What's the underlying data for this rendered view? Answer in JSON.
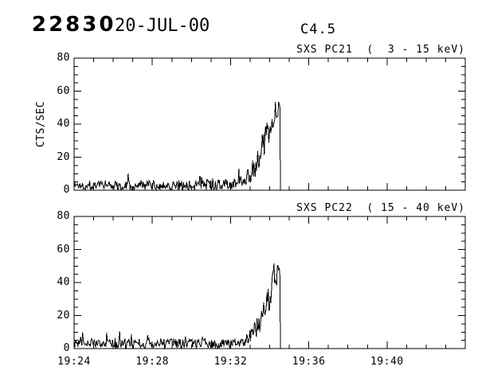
{
  "header": {
    "event_number": "22830",
    "date": "20-JUL-00",
    "goes_class": "C4.5"
  },
  "colors": {
    "background": "#ffffff",
    "foreground": "#000000"
  },
  "chart_data": {
    "type": "line",
    "title": "",
    "xlabel": "",
    "ylabel": "CTS/SEC",
    "grid": false,
    "x_axis": {
      "start_time": "19:24",
      "range_min": [
        0,
        20
      ],
      "minor_step_min": 1,
      "major_ticks": [
        {
          "t": 0,
          "label": "19:24"
        },
        {
          "t": 4,
          "label": "19:28"
        },
        {
          "t": 8,
          "label": "19:32"
        },
        {
          "t": 12,
          "label": "19:36"
        },
        {
          "t": 16,
          "label": "19:40"
        },
        {
          "t": 20,
          "label": ""
        }
      ]
    },
    "envelope_format": "[minutes_after_19:24, mean_cts_per_sec, noise_halfwidth_cts]",
    "panels": [
      {
        "title": "SXS PC21  (  3 - 15 keV)",
        "ylabel": "CTS/SEC",
        "ylim": [
          0,
          80
        ],
        "yticks": [
          0,
          20,
          40,
          60,
          80
        ],
        "yminor_step": 5,
        "series": {
          "name": "PC21 3-15 keV",
          "baseline_cts": 3,
          "peak_cts": 59,
          "rise_start_min": 8.4,
          "data_end_min": 10.55,
          "seed": 1337,
          "spike_prob": 0.07,
          "spike_amp": 7,
          "clamp_max": 59,
          "step_min": 0.0333,
          "envelope": [
            [
              0,
              3,
              3
            ],
            [
              6.2,
              3,
              3
            ],
            [
              6.45,
              4.5,
              4.5
            ],
            [
              6.7,
              3,
              3
            ],
            [
              8.0,
              3.5,
              3.5
            ],
            [
              8.6,
              6,
              4
            ],
            [
              9.0,
              10,
              6
            ],
            [
              9.3,
              16,
              7
            ],
            [
              9.6,
              24,
              8
            ],
            [
              9.9,
              34,
              9
            ],
            [
              10.1,
              42,
              9
            ],
            [
              10.3,
              47,
              10
            ],
            [
              10.55,
              46,
              7
            ]
          ]
        }
      },
      {
        "title": "SXS PC22  ( 15 - 40 keV)",
        "ylabel": "",
        "ylim": [
          0,
          80
        ],
        "yticks": [
          0,
          20,
          40,
          60,
          80
        ],
        "yminor_step": 5,
        "series": {
          "name": "PC22 15-40 keV",
          "baseline_cts": 3,
          "peak_cts": 58,
          "rise_start_min": 8.6,
          "data_end_min": 10.55,
          "seed": 9021,
          "spike_prob": 0.07,
          "spike_amp": 7,
          "clamp_max": 58,
          "step_min": 0.0333,
          "envelope": [
            [
              0,
              3,
              3
            ],
            [
              8.2,
              3,
              3
            ],
            [
              8.8,
              5.5,
              4
            ],
            [
              9.2,
              10,
              6
            ],
            [
              9.5,
              16,
              7
            ],
            [
              9.8,
              25,
              8
            ],
            [
              10.05,
              34,
              9
            ],
            [
              10.25,
              44,
              10
            ],
            [
              10.4,
              46,
              9
            ],
            [
              10.55,
              43,
              7
            ]
          ]
        }
      }
    ]
  }
}
